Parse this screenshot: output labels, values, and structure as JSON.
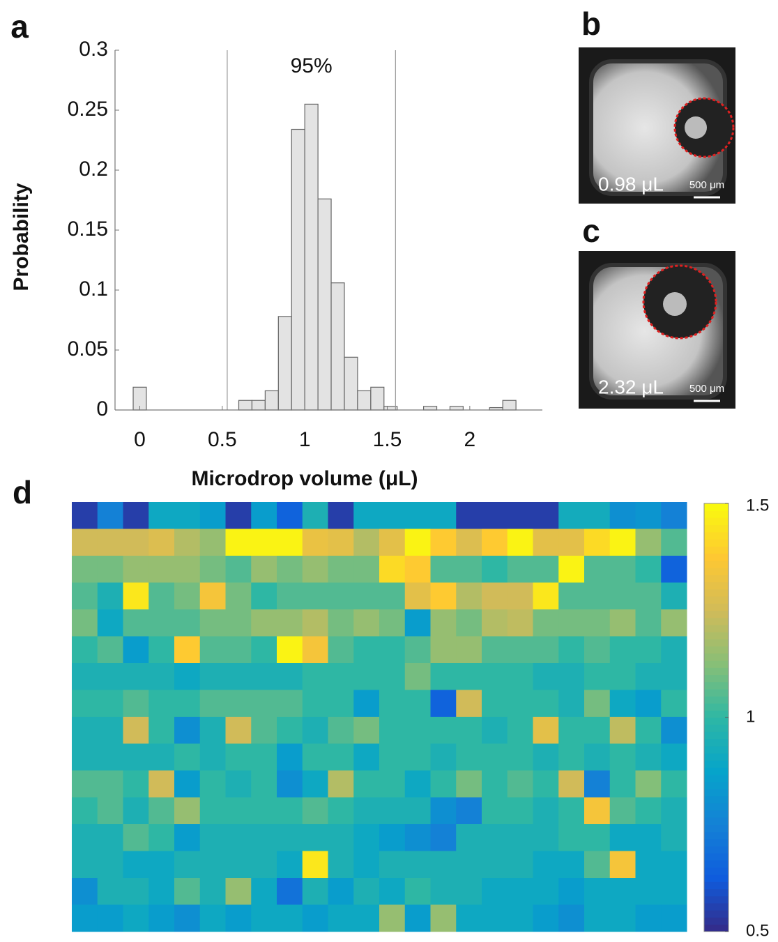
{
  "panel_labels": [
    "a",
    "b",
    "c",
    "d"
  ],
  "images": [
    {
      "volume_label": "0.98 μL",
      "scale_label": "500 μm"
    },
    {
      "volume_label": "2.32 μL",
      "scale_label": "500 μm"
    }
  ],
  "chart_data": [
    {
      "type": "histogram",
      "x_label": "Microdrop volume (μL)",
      "y_label": "Probability",
      "annotation": "95%",
      "bins": [
        -0.04,
        0.04,
        0.12,
        0.2,
        0.28,
        0.36,
        0.44,
        0.52,
        0.6,
        0.68,
        0.76,
        0.84,
        0.92,
        1,
        1.08,
        1.16,
        1.24,
        1.32,
        1.4,
        1.48,
        1.56,
        1.64,
        1.72,
        1.8,
        1.88,
        1.96,
        2.04,
        2.12,
        2.2,
        2.28,
        2.36
      ],
      "values": [
        0.019,
        0,
        0,
        0,
        0,
        0,
        0,
        0,
        0.008,
        0.008,
        0.016,
        0.078,
        0.234,
        0.255,
        0.176,
        0.106,
        0.044,
        0.016,
        0.019,
        0.003,
        0,
        0,
        0.003,
        0,
        0.003,
        0,
        0,
        0.002,
        0.008,
        0
      ],
      "color": "#e3e3e3",
      "reference_lines": [
        0.53,
        1.55
      ],
      "xlim": [
        -0.15,
        2.44
      ],
      "ylim": [
        0,
        0.3
      ],
      "xticks": [
        0,
        0.5,
        1,
        1.5,
        2
      ],
      "yticks": [
        0,
        0.05,
        0.1,
        0.15,
        0.2,
        0.25,
        0.3
      ]
    },
    {
      "type": "heatmap",
      "colormap": "parula",
      "clim": [
        0.5,
        1.5
      ],
      "colorbar_ticks": [
        0.5,
        1,
        1.5
      ],
      "values": [
        [
          0.55,
          0.75,
          0.55,
          0.9,
          0.9,
          0.85,
          0.55,
          0.85,
          0.65,
          0.95,
          0.55,
          0.9,
          0.9,
          0.9,
          0.9,
          0.55,
          0.55,
          0.55,
          0.55,
          0.92,
          0.92,
          0.8,
          0.82,
          0.75
        ],
        [
          1.25,
          1.25,
          1.25,
          1.28,
          1.2,
          1.15,
          1.48,
          1.48,
          1.48,
          1.32,
          1.3,
          1.2,
          1.3,
          1.48,
          1.38,
          1.28,
          1.38,
          1.48,
          1.3,
          1.3,
          1.42,
          1.48,
          1.15,
          1.05
        ],
        [
          1.1,
          1.1,
          1.15,
          1.15,
          1.15,
          1.1,
          1.05,
          1.15,
          1.1,
          1.15,
          1.1,
          1.1,
          1.42,
          1.38,
          1.05,
          1.05,
          1,
          1.05,
          1.05,
          1.48,
          1.05,
          1.05,
          1,
          0.65
        ],
        [
          1.05,
          0.95,
          1.45,
          1.05,
          1.1,
          1.35,
          1.1,
          1,
          1.05,
          1.05,
          1.05,
          1.05,
          1.05,
          1.3,
          1.38,
          1.2,
          1.25,
          1.25,
          1.45,
          1.05,
          1.05,
          1.05,
          1.05,
          0.95
        ],
        [
          1.1,
          0.9,
          1.05,
          1.05,
          1.05,
          1.1,
          1.1,
          1.15,
          1.15,
          1.2,
          1.1,
          1.15,
          1.1,
          0.85,
          1.15,
          1.1,
          1.2,
          1.22,
          1.1,
          1.1,
          1.1,
          1.15,
          1.05,
          1.15
        ],
        [
          1,
          1.05,
          0.85,
          1,
          1.38,
          1.05,
          1.05,
          1,
          1.48,
          1.35,
          1.05,
          1,
          1,
          1.05,
          1.15,
          1.15,
          1.05,
          1.05,
          1.05,
          1,
          1.05,
          1,
          1,
          0.95
        ],
        [
          0.95,
          0.95,
          0.95,
          0.95,
          0.9,
          0.95,
          0.95,
          0.95,
          0.95,
          1,
          1,
          1,
          1,
          1.1,
          1,
          1,
          1,
          1,
          0.95,
          0.95,
          1,
          1,
          0.95,
          0.95
        ],
        [
          1,
          1,
          1.05,
          1,
          1,
          1.05,
          1.05,
          1.05,
          1.05,
          1,
          1,
          0.85,
          1,
          1,
          0.65,
          1.25,
          1,
          1,
          1,
          0.95,
          1.1,
          0.9,
          0.85,
          1
        ],
        [
          0.95,
          0.95,
          1.25,
          1,
          0.8,
          0.95,
          1.25,
          1.05,
          1,
          0.95,
          1.05,
          1.1,
          1,
          1,
          1,
          1,
          0.95,
          1,
          1.3,
          1,
          1,
          1.22,
          1,
          0.8
        ],
        [
          0.95,
          0.95,
          0.95,
          0.95,
          1,
          0.95,
          1,
          1,
          0.85,
          1,
          1,
          0.9,
          1,
          1,
          0.95,
          1,
          1,
          1,
          0.95,
          1,
          0.95,
          1,
          0.95,
          0.9
        ],
        [
          1.05,
          1.05,
          1,
          1.25,
          0.85,
          1,
          0.95,
          1,
          0.8,
          0.9,
          1.2,
          1,
          1,
          0.9,
          1,
          1.1,
          1,
          1.05,
          1,
          1.25,
          0.75,
          1,
          1.12,
          1
        ],
        [
          1,
          1.05,
          0.95,
          1.05,
          1.15,
          1,
          1,
          1,
          1,
          1.05,
          1,
          0.95,
          0.95,
          0.95,
          0.8,
          0.75,
          1,
          1,
          0.95,
          1,
          1.35,
          1.05,
          1,
          0.95
        ],
        [
          0.95,
          0.95,
          1.05,
          1,
          0.85,
          0.95,
          0.95,
          0.95,
          0.95,
          0.95,
          0.95,
          0.9,
          0.85,
          0.8,
          0.75,
          0.95,
          0.95,
          0.95,
          0.95,
          1,
          1,
          0.9,
          0.9,
          0.95
        ],
        [
          0.95,
          0.95,
          0.9,
          0.9,
          0.95,
          0.95,
          0.95,
          0.95,
          0.9,
          1.45,
          0.95,
          0.9,
          0.95,
          0.95,
          0.95,
          0.95,
          0.95,
          0.95,
          0.9,
          0.9,
          1.05,
          1.35,
          0.9,
          0.9
        ],
        [
          0.8,
          0.95,
          0.95,
          0.9,
          1.05,
          0.95,
          1.15,
          0.9,
          0.7,
          0.95,
          0.85,
          0.95,
          0.9,
          1,
          0.95,
          0.95,
          0.9,
          0.9,
          0.9,
          0.85,
          0.9,
          0.9,
          0.9,
          0.9
        ],
        [
          0.85,
          0.85,
          0.9,
          0.85,
          0.8,
          0.9,
          0.85,
          0.9,
          0.9,
          0.85,
          0.9,
          0.9,
          1.15,
          0.85,
          1.15,
          0.9,
          0.9,
          0.9,
          0.85,
          0.8,
          0.9,
          0.9,
          0.85,
          0.85
        ]
      ]
    }
  ]
}
